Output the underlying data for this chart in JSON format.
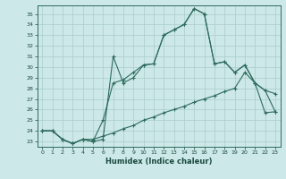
{
  "title": "",
  "xlabel": "Humidex (Indice chaleur)",
  "bg_color": "#cce8e8",
  "line_color": "#2e6b5e",
  "grid_color": "#aacccc",
  "xlim": [
    -0.5,
    23.5
  ],
  "ylim": [
    22.5,
    35.8
  ],
  "xticks": [
    0,
    1,
    2,
    3,
    4,
    5,
    6,
    7,
    8,
    9,
    10,
    11,
    12,
    13,
    14,
    15,
    16,
    17,
    18,
    19,
    20,
    21,
    22,
    23
  ],
  "yticks": [
    23,
    24,
    25,
    26,
    27,
    28,
    29,
    30,
    31,
    32,
    33,
    34,
    35
  ],
  "line1_x": [
    0,
    1,
    2,
    3,
    4,
    5,
    6,
    7,
    8,
    9,
    10,
    11,
    12,
    13,
    14,
    15,
    16,
    17,
    18,
    19,
    20,
    21,
    22,
    23
  ],
  "line1_y": [
    24.0,
    24.0,
    23.2,
    22.8,
    23.2,
    23.0,
    23.2,
    31.0,
    28.5,
    29.0,
    30.2,
    30.3,
    33.0,
    33.5,
    34.0,
    35.5,
    35.0,
    30.3,
    30.5,
    29.5,
    30.2,
    28.5,
    27.8,
    27.5
  ],
  "line2_x": [
    0,
    1,
    2,
    3,
    4,
    5,
    6,
    7,
    8,
    9,
    10,
    11,
    12,
    13,
    14,
    15,
    16,
    17,
    18,
    19,
    20,
    21,
    22,
    23
  ],
  "line2_y": [
    24.0,
    24.0,
    23.2,
    22.8,
    23.2,
    23.0,
    25.0,
    28.5,
    28.8,
    29.5,
    30.2,
    30.3,
    33.0,
    33.5,
    34.0,
    35.5,
    35.0,
    30.3,
    30.5,
    29.5,
    30.2,
    28.5,
    27.8,
    25.8
  ],
  "line3_x": [
    0,
    1,
    2,
    3,
    4,
    5,
    6,
    7,
    8,
    9,
    10,
    11,
    12,
    13,
    14,
    15,
    16,
    17,
    18,
    19,
    20,
    21,
    22,
    23
  ],
  "line3_y": [
    24.0,
    24.0,
    23.2,
    22.8,
    23.2,
    23.2,
    23.5,
    23.8,
    24.2,
    24.5,
    25.0,
    25.3,
    25.7,
    26.0,
    26.3,
    26.7,
    27.0,
    27.3,
    27.7,
    28.0,
    29.5,
    28.5,
    25.7,
    25.8
  ]
}
